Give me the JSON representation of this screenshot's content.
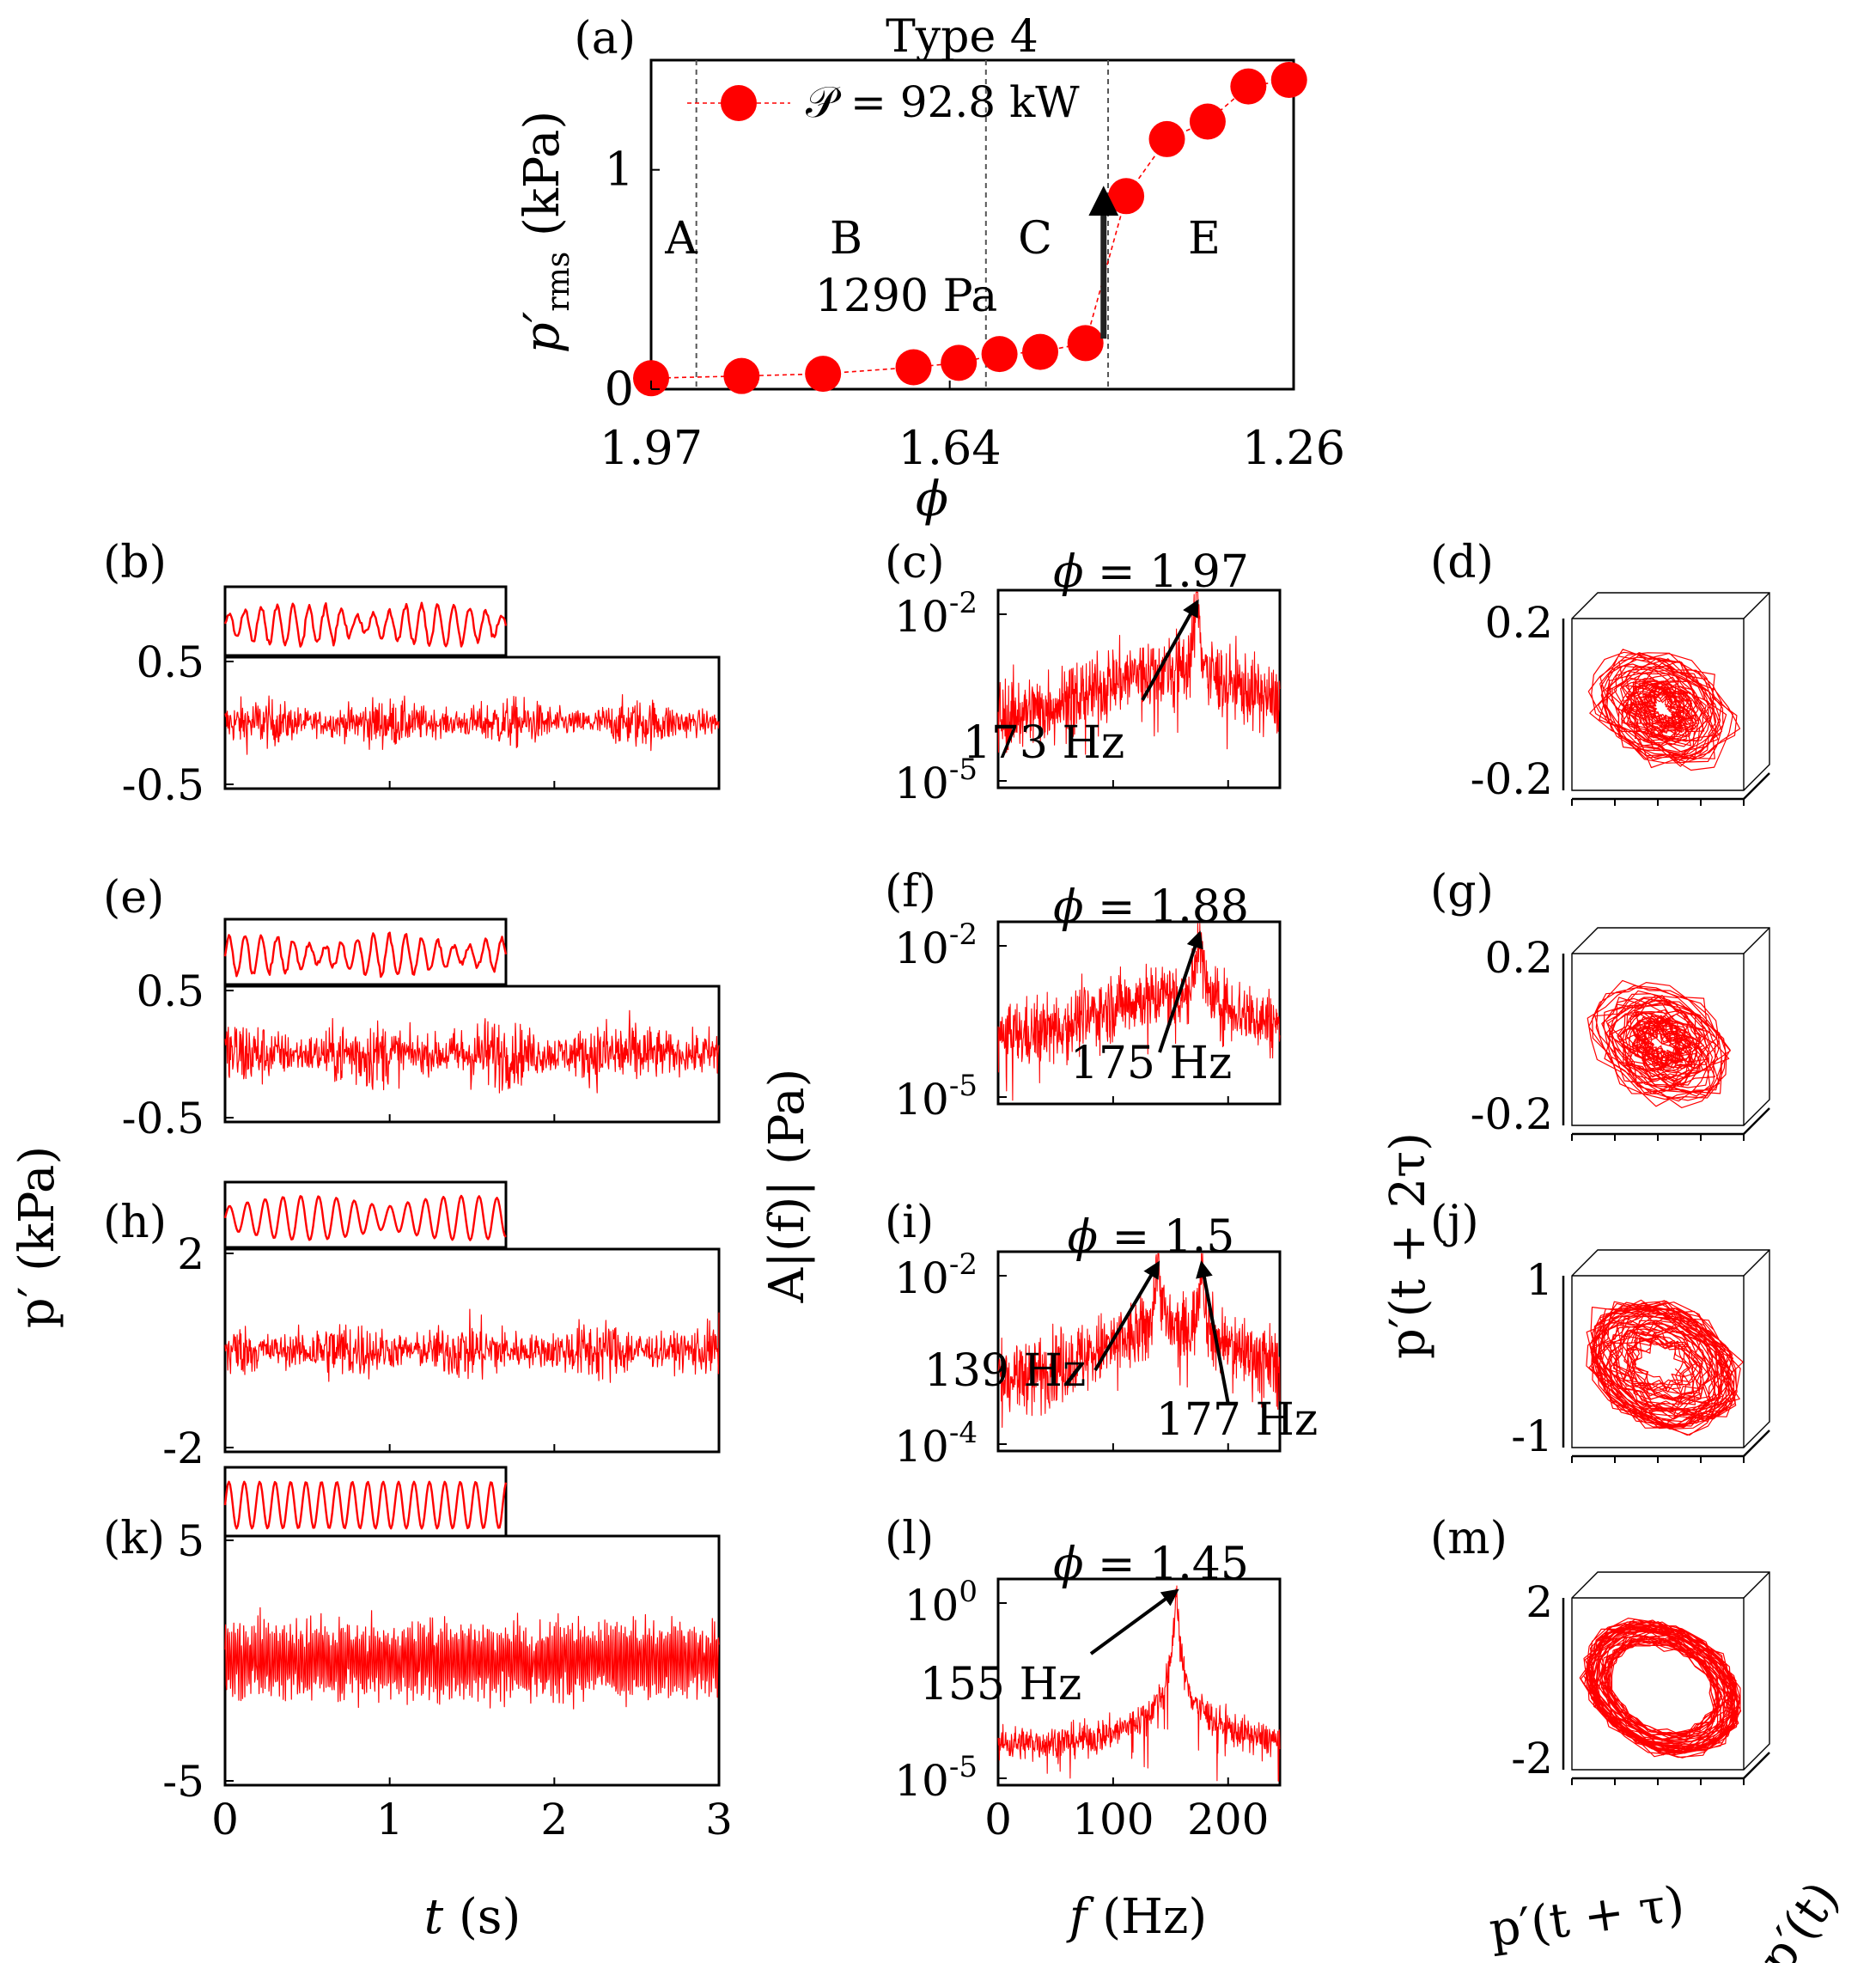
{
  "chart_data": [
    {
      "id": "a",
      "panel_label": "(a)",
      "type": "line",
      "title": "Type 4",
      "xlabel": "ϕ",
      "ylabel_main": "p′",
      "ylabel_sub": "rms",
      "ylabel_unit": "(kPa)",
      "x_reversed": true,
      "xlim": [
        1.26,
        1.97
      ],
      "ylim": [
        0,
        1.5
      ],
      "xticks": [
        1.97,
        1.64,
        1.26
      ],
      "yticks": [
        0,
        1
      ],
      "legend": "𝒫 = 92.8 kW",
      "legend_position": "top-left",
      "x": [
        1.97,
        1.87,
        1.78,
        1.68,
        1.63,
        1.585,
        1.54,
        1.49,
        1.445,
        1.4,
        1.355,
        1.31,
        1.265
      ],
      "y": [
        0.05,
        0.06,
        0.07,
        0.1,
        0.12,
        0.16,
        0.17,
        0.21,
        0.88,
        1.14,
        1.22,
        1.38,
        1.41
      ],
      "region_boundaries": [
        1.92,
        1.6,
        1.465
      ],
      "region_labels": [
        "A",
        "B",
        "C",
        "E"
      ],
      "annotation": "1290 Pa",
      "jump": {
        "x": 1.47,
        "from": 0.23,
        "to": 0.9
      }
    },
    {
      "id": "b",
      "panel_label": "(b)",
      "type": "line",
      "yticks": [
        "0.5",
        "-0.5"
      ],
      "ylim": [
        -0.6,
        0.6
      ],
      "noise_amplitude": 0.35,
      "inset": "zoomed time trace"
    },
    {
      "id": "e",
      "panel_label": "(e)",
      "type": "line",
      "yticks": [
        "0.5",
        "-0.5"
      ],
      "ylim": [
        -0.6,
        0.6
      ],
      "noise_amplitude": 0.5,
      "inset": "zoomed time trace"
    },
    {
      "id": "h",
      "panel_label": "(h)",
      "type": "line",
      "yticks": [
        "2",
        "-2"
      ],
      "ylim": [
        -2.5,
        2.5
      ],
      "noise_amplitude": 1.2,
      "inset": "zoomed time trace"
    },
    {
      "id": "k",
      "panel_label": "(k)",
      "type": "line",
      "yticks": [
        "5",
        "-5"
      ],
      "ylim": [
        -6,
        6
      ],
      "noise_amplitude": 3.3,
      "inset": "zoomed time trace",
      "xlabel_main": "t",
      "xlabel_unit": "(s)",
      "xticks": [
        "0",
        "1",
        "2",
        "3"
      ]
    },
    {
      "id": "c",
      "panel_label": "(c)",
      "type": "line",
      "title_lhs": "ϕ",
      "title_value": "1.97",
      "y_log": true,
      "ytick_exps": [
        "-2",
        "-5"
      ],
      "peaks_hz": [
        173
      ],
      "peak_labels": [
        "173 Hz"
      ]
    },
    {
      "id": "f",
      "panel_label": "(f)",
      "type": "line",
      "title_lhs": "ϕ",
      "title_value": "1.88",
      "y_log": true,
      "ytick_exps": [
        "-2",
        "-5"
      ],
      "peaks_hz": [
        175
      ],
      "peak_labels": [
        "175 Hz"
      ]
    },
    {
      "id": "i",
      "panel_label": "(i)",
      "type": "line",
      "title_lhs": "ϕ",
      "title_value": "1.5",
      "y_log": true,
      "ytick_exps": [
        "-2",
        "-4"
      ],
      "peaks_hz": [
        139,
        177
      ],
      "peak_labels": [
        "139 Hz",
        "177 Hz"
      ]
    },
    {
      "id": "l",
      "panel_label": "(l)",
      "type": "line",
      "title_lhs": "ϕ",
      "title_value": "1.45",
      "y_log": true,
      "ytick_exps": [
        "0",
        "-5"
      ],
      "peaks_hz": [
        155
      ],
      "peak_labels": [
        "155 Hz"
      ],
      "xlabel_main": "f",
      "xlabel_unit": "(Hz)",
      "xticks": [
        "0",
        "100",
        "200"
      ]
    },
    {
      "id": "d",
      "panel_label": "(d)",
      "type": "scatter",
      "yticks": [
        "0.2",
        "-0.2"
      ],
      "orbit": "noisy"
    },
    {
      "id": "g",
      "panel_label": "(g)",
      "type": "scatter",
      "yticks": [
        "0.2",
        "-0.2"
      ],
      "orbit": "noisy"
    },
    {
      "id": "j",
      "panel_label": "(j)",
      "type": "scatter",
      "yticks": [
        "1",
        "-1"
      ],
      "orbit": "mixed"
    },
    {
      "id": "m",
      "panel_label": "(m)",
      "type": "scatter",
      "yticks": [
        "2",
        "-2"
      ],
      "orbit": "limit-cycle"
    }
  ],
  "axis_labels": {
    "time_series_ylabel": "p′ (kPa)",
    "spectrum_ylabel": "A|(f)| (Pa)",
    "phase_ylabel": "p′(t + 2τ)",
    "phase_xlabel": "p′(t + τ)",
    "phase_zlabel": "p′(t)",
    "exp_base": "10"
  },
  "colors": {
    "series": "#ff0000",
    "axis": "#000000",
    "arrow": "#222222",
    "grid": "#555555"
  }
}
